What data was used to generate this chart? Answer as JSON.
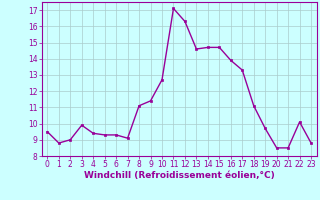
{
  "x": [
    0,
    1,
    2,
    3,
    4,
    5,
    6,
    7,
    8,
    9,
    10,
    11,
    12,
    13,
    14,
    15,
    16,
    17,
    18,
    19,
    20,
    21,
    22,
    23
  ],
  "y": [
    9.5,
    8.8,
    9.0,
    9.9,
    9.4,
    9.3,
    9.3,
    9.1,
    11.1,
    11.4,
    12.7,
    17.1,
    16.3,
    14.6,
    14.7,
    14.7,
    13.9,
    13.3,
    11.1,
    9.7,
    8.5,
    8.5,
    10.1,
    8.8
  ],
  "line_color": "#990099",
  "marker": "s",
  "markersize": 2,
  "linewidth": 1.0,
  "xlabel": "Windchill (Refroidissement éolien,°C)",
  "xlabel_fontsize": 6.5,
  "ylim": [
    8,
    17.5
  ],
  "xlim": [
    -0.5,
    23.5
  ],
  "yticks": [
    8,
    9,
    10,
    11,
    12,
    13,
    14,
    15,
    16,
    17
  ],
  "xticks": [
    0,
    1,
    2,
    3,
    4,
    5,
    6,
    7,
    8,
    9,
    10,
    11,
    12,
    13,
    14,
    15,
    16,
    17,
    18,
    19,
    20,
    21,
    22,
    23
  ],
  "tick_fontsize": 5.5,
  "background_color": "#ccffff",
  "grid_color": "#aacccc",
  "tick_color": "#990099",
  "label_color": "#990099",
  "spine_color": "#990099"
}
